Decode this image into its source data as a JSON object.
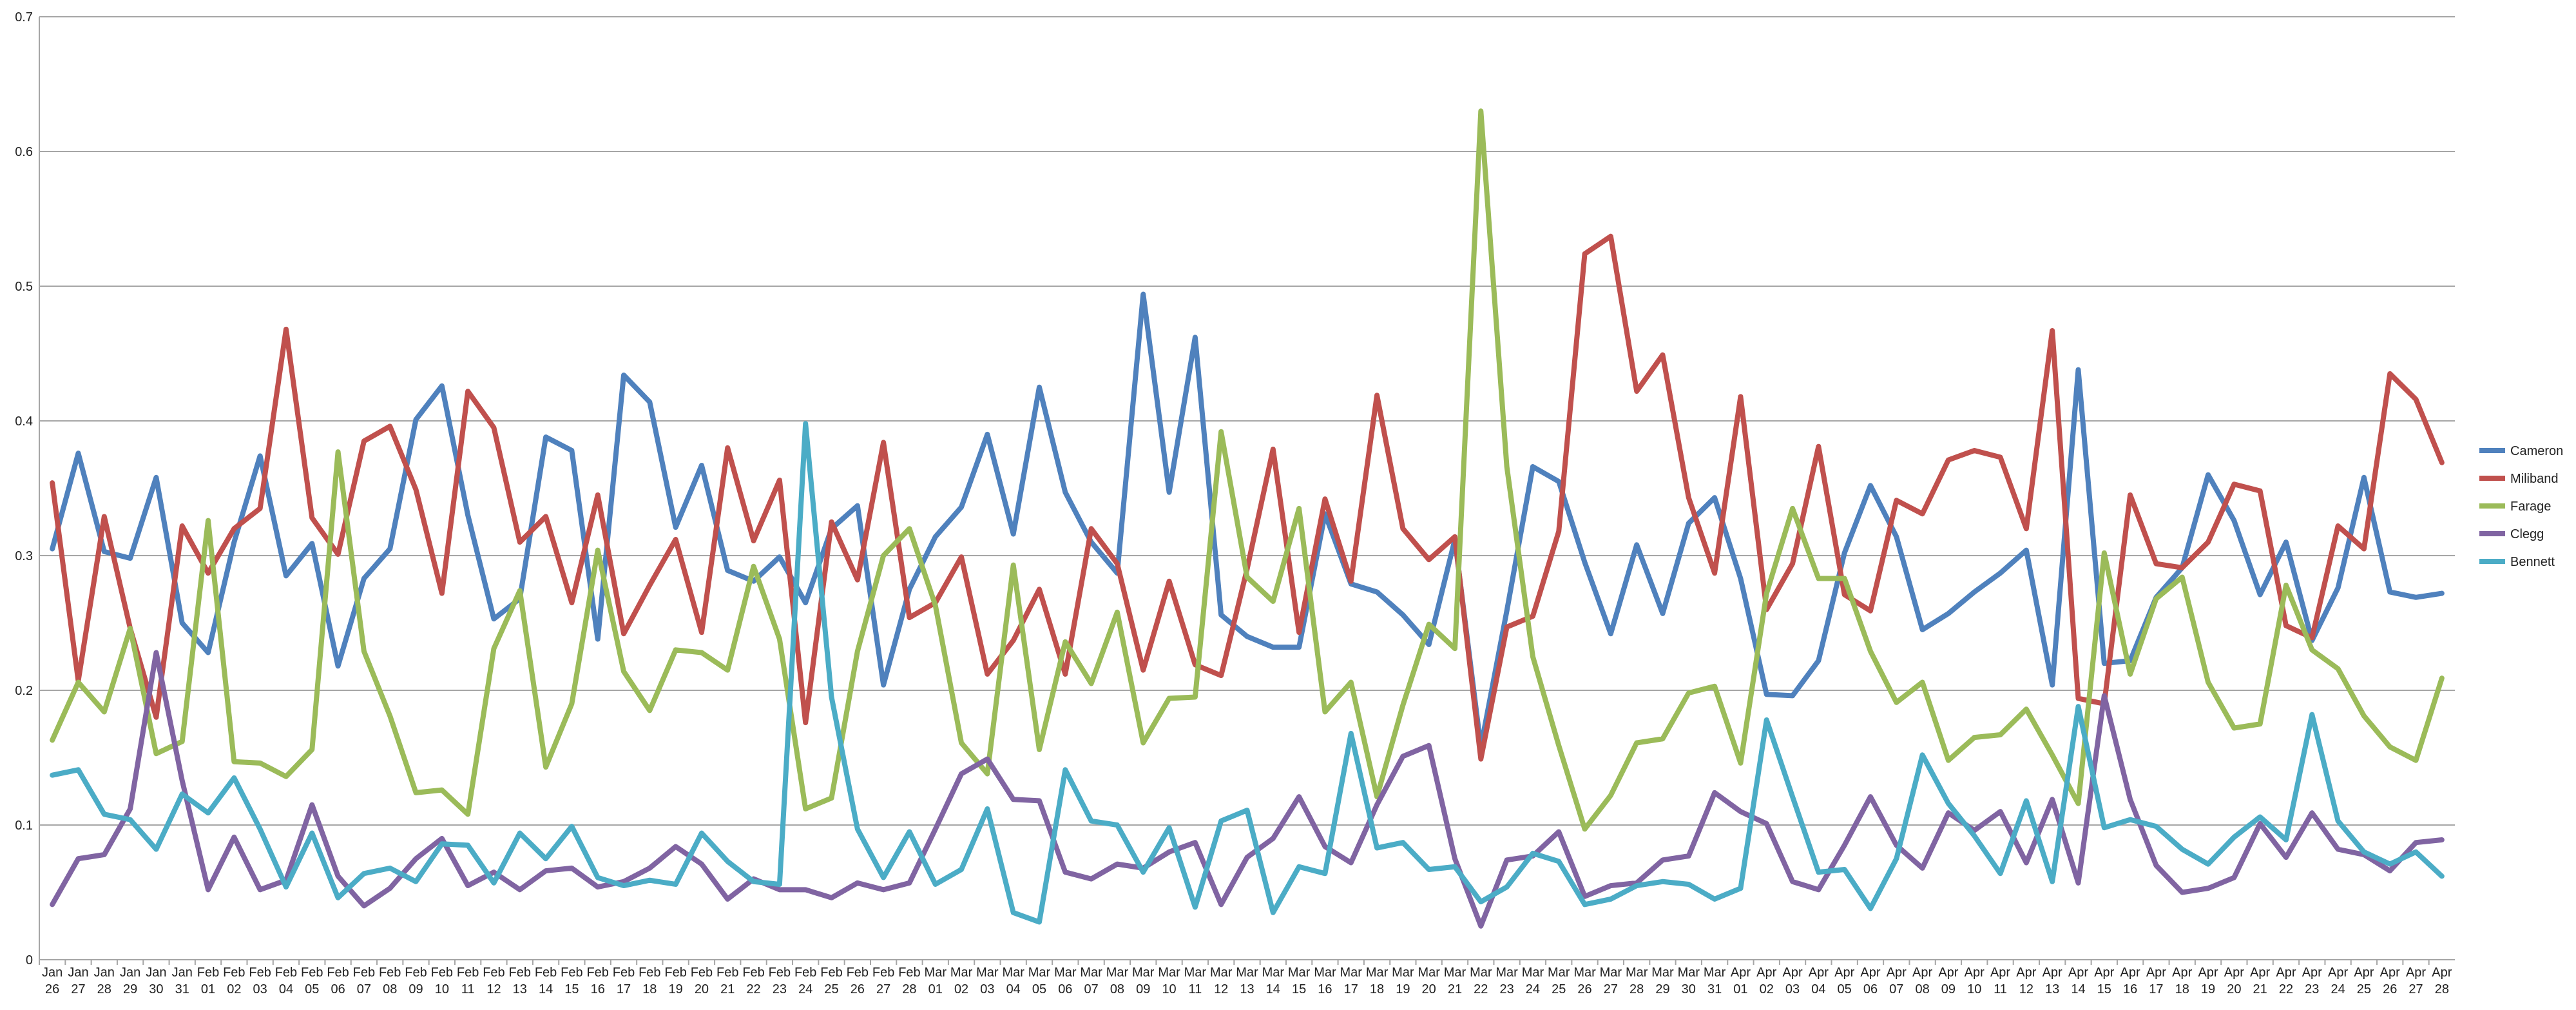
{
  "chart_data": {
    "type": "line",
    "categories": [
      "Jan 26",
      "Jan 27",
      "Jan 28",
      "Jan 29",
      "Jan 30",
      "Jan 31",
      "Feb 01",
      "Feb 02",
      "Feb 03",
      "Feb 04",
      "Feb 05",
      "Feb 06",
      "Feb 07",
      "Feb 08",
      "Feb 09",
      "Feb 10",
      "Feb 11",
      "Feb 12",
      "Feb 13",
      "Feb 14",
      "Feb 15",
      "Feb 16",
      "Feb 17",
      "Feb 18",
      "Feb 19",
      "Feb 20",
      "Feb 21",
      "Feb 22",
      "Feb 23",
      "Feb 24",
      "Feb 25",
      "Feb 26",
      "Feb 27",
      "Feb 28",
      "Mar 01",
      "Mar 02",
      "Mar 03",
      "Mar 04",
      "Mar 05",
      "Mar 06",
      "Mar 07",
      "Mar 08",
      "Mar 09",
      "Mar 10",
      "Mar 11",
      "Mar 12",
      "Mar 13",
      "Mar 14",
      "Mar 15",
      "Mar 16",
      "Mar 17",
      "Mar 18",
      "Mar 19",
      "Mar 20",
      "Mar 21",
      "Mar 22",
      "Mar 23",
      "Mar 24",
      "Mar 25",
      "Mar 26",
      "Mar 27",
      "Mar 28",
      "Mar 29",
      "Mar 30",
      "Mar 31",
      "Apr 01",
      "Apr 02",
      "Apr 03",
      "Apr 04",
      "Apr 05",
      "Apr 06",
      "Apr 07",
      "Apr 08",
      "Apr 09",
      "Apr 10",
      "Apr 11",
      "Apr 12",
      "Apr 13",
      "Apr 14",
      "Apr 15",
      "Apr 16",
      "Apr 17",
      "Apr 18",
      "Apr 19",
      "Apr 20",
      "Apr 21",
      "Apr 22",
      "Apr 23",
      "Apr 24",
      "Apr 25",
      "Apr 26",
      "Apr 27",
      "Apr 28"
    ],
    "series": [
      {
        "name": "Cameron",
        "color": "#4f81bd",
        "values": [
          0.305,
          0.376,
          0.303,
          0.298,
          0.358,
          0.25,
          0.228,
          0.31,
          0.374,
          0.285,
          0.309,
          0.218,
          0.283,
          0.305,
          0.401,
          0.426,
          0.33,
          0.253,
          0.268,
          0.388,
          0.378,
          0.238,
          0.434,
          0.414,
          0.321,
          0.367,
          0.289,
          0.281,
          0.299,
          0.265,
          0.32,
          0.337,
          0.204,
          0.275,
          0.314,
          0.336,
          0.39,
          0.316,
          0.425,
          0.347,
          0.31,
          0.287,
          0.494,
          0.347,
          0.462,
          0.256,
          0.24,
          0.232,
          0.232,
          0.331,
          0.279,
          0.273,
          0.256,
          0.234,
          0.312,
          0.158,
          0.259,
          0.366,
          0.355,
          0.295,
          0.242,
          0.308,
          0.257,
          0.324,
          0.343,
          0.283,
          0.197,
          0.196,
          0.222,
          0.302,
          0.352,
          0.314,
          0.245,
          0.257,
          0.273,
          0.287,
          0.304,
          0.204,
          0.438,
          0.22,
          0.222,
          0.269,
          0.291,
          0.36,
          0.326,
          0.271,
          0.31,
          0.237,
          0.276,
          0.358,
          0.273,
          0.269,
          0.272
        ]
      },
      {
        "name": "Miliband",
        "color": "#c0504d",
        "values": [
          0.354,
          0.207,
          0.329,
          0.246,
          0.18,
          0.322,
          0.287,
          0.32,
          0.335,
          0.468,
          0.328,
          0.301,
          0.385,
          0.396,
          0.349,
          0.272,
          0.422,
          0.395,
          0.31,
          0.329,
          0.265,
          0.345,
          0.242,
          0.278,
          0.312,
          0.243,
          0.38,
          0.311,
          0.356,
          0.176,
          0.325,
          0.282,
          0.384,
          0.254,
          0.265,
          0.299,
          0.212,
          0.237,
          0.275,
          0.212,
          0.32,
          0.294,
          0.215,
          0.281,
          0.219,
          0.211,
          0.29,
          0.379,
          0.243,
          0.342,
          0.281,
          0.419,
          0.32,
          0.297,
          0.314,
          0.149,
          0.247,
          0.255,
          0.318,
          0.524,
          0.537,
          0.422,
          0.449,
          0.343,
          0.287,
          0.418,
          0.26,
          0.294,
          0.381,
          0.271,
          0.259,
          0.341,
          0.331,
          0.371,
          0.378,
          0.373,
          0.32,
          0.467,
          0.194,
          0.19,
          0.345,
          0.294,
          0.291,
          0.31,
          0.353,
          0.348,
          0.248,
          0.239,
          0.322,
          0.305,
          0.435,
          0.416,
          0.369
        ]
      },
      {
        "name": "Farage",
        "color": "#9bbb59",
        "values": [
          0.163,
          0.206,
          0.184,
          0.246,
          0.153,
          0.162,
          0.326,
          0.147,
          0.146,
          0.136,
          0.156,
          0.377,
          0.229,
          0.181,
          0.124,
          0.126,
          0.108,
          0.231,
          0.274,
          0.143,
          0.19,
          0.304,
          0.214,
          0.185,
          0.23,
          0.228,
          0.215,
          0.292,
          0.238,
          0.112,
          0.12,
          0.229,
          0.3,
          0.32,
          0.263,
          0.161,
          0.138,
          0.293,
          0.156,
          0.236,
          0.205,
          0.258,
          0.161,
          0.194,
          0.195,
          0.392,
          0.284,
          0.266,
          0.335,
          0.184,
          0.206,
          0.121,
          0.189,
          0.249,
          0.231,
          0.63,
          0.366,
          0.225,
          0.159,
          0.097,
          0.122,
          0.161,
          0.164,
          0.198,
          0.203,
          0.146,
          0.272,
          0.335,
          0.283,
          0.283,
          0.229,
          0.191,
          0.206,
          0.148,
          0.165,
          0.167,
          0.186,
          0.152,
          0.116,
          0.302,
          0.212,
          0.268,
          0.284,
          0.206,
          0.172,
          0.175,
          0.278,
          0.23,
          0.216,
          0.181,
          0.158,
          0.148,
          0.209
        ]
      },
      {
        "name": "Clegg",
        "color": "#8064a2",
        "values": [
          0.041,
          0.075,
          0.078,
          0.112,
          0.228,
          0.133,
          0.052,
          0.091,
          0.052,
          0.059,
          0.115,
          0.062,
          0.04,
          0.053,
          0.075,
          0.09,
          0.055,
          0.065,
          0.052,
          0.066,
          0.068,
          0.054,
          0.058,
          0.068,
          0.084,
          0.071,
          0.045,
          0.06,
          0.052,
          0.052,
          0.046,
          0.057,
          0.052,
          0.057,
          0.097,
          0.138,
          0.149,
          0.119,
          0.118,
          0.065,
          0.06,
          0.071,
          0.068,
          0.08,
          0.087,
          0.041,
          0.076,
          0.09,
          0.121,
          0.084,
          0.072,
          0.115,
          0.151,
          0.159,
          0.075,
          0.025,
          0.074,
          0.077,
          0.095,
          0.047,
          0.055,
          0.057,
          0.074,
          0.077,
          0.124,
          0.11,
          0.101,
          0.058,
          0.052,
          0.085,
          0.121,
          0.085,
          0.068,
          0.109,
          0.096,
          0.11,
          0.072,
          0.119,
          0.057,
          0.196,
          0.119,
          0.07,
          0.05,
          0.053,
          0.061,
          0.101,
          0.076,
          0.109,
          0.082,
          0.078,
          0.066,
          0.087,
          0.089
        ]
      },
      {
        "name": "Bennett",
        "color": "#4bacc6",
        "values": [
          0.137,
          0.141,
          0.108,
          0.104,
          0.082,
          0.123,
          0.109,
          0.135,
          0.097,
          0.054,
          0.094,
          0.046,
          0.064,
          0.068,
          0.058,
          0.086,
          0.085,
          0.057,
          0.094,
          0.075,
          0.099,
          0.061,
          0.055,
          0.059,
          0.056,
          0.094,
          0.073,
          0.058,
          0.056,
          0.398,
          0.195,
          0.097,
          0.061,
          0.095,
          0.056,
          0.067,
          0.112,
          0.035,
          0.028,
          0.141,
          0.103,
          0.1,
          0.065,
          0.098,
          0.039,
          0.103,
          0.111,
          0.035,
          0.069,
          0.064,
          0.168,
          0.083,
          0.087,
          0.067,
          0.069,
          0.043,
          0.054,
          0.079,
          0.073,
          0.041,
          0.045,
          0.055,
          0.058,
          0.056,
          0.045,
          0.053,
          0.178,
          0.121,
          0.065,
          0.067,
          0.038,
          0.075,
          0.152,
          0.116,
          0.092,
          0.064,
          0.118,
          0.058,
          0.188,
          0.098,
          0.104,
          0.099,
          0.082,
          0.071,
          0.091,
          0.106,
          0.089,
          0.182,
          0.103,
          0.08,
          0.071,
          0.08,
          0.062
        ]
      }
    ],
    "ylim": [
      0,
      0.7
    ],
    "yticks": [
      0,
      0.1,
      0.2,
      0.3,
      0.4,
      0.5,
      0.6,
      0.7
    ],
    "grid": true,
    "legend": "right"
  }
}
